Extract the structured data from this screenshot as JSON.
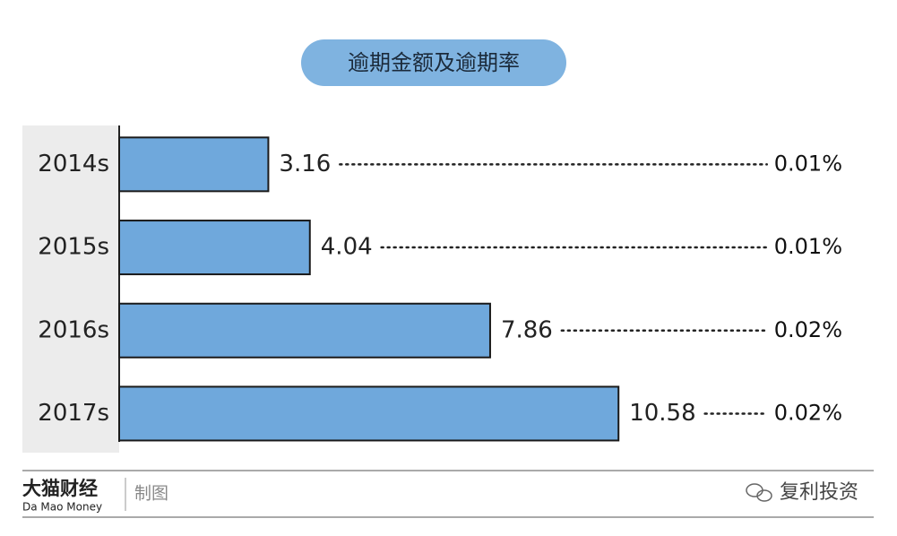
{
  "chart_data": {
    "type": "bar",
    "orientation": "horizontal",
    "title": "逾期金额及逾期率",
    "categories": [
      "2014s",
      "2015s",
      "2016s",
      "2017s"
    ],
    "values": [
      3.16,
      4.04,
      7.86,
      10.58
    ],
    "color": "#6fa8dc",
    "xlim": [
      0,
      12
    ],
    "rates": {
      "values": [
        0.01,
        0.01,
        0.02,
        0.02
      ],
      "value_labels": [
        "0.01%",
        "0.01%",
        "0.02%",
        "0.02%"
      ]
    }
  },
  "footer": {
    "brand": "大猫财经",
    "brand_en": "Da Mao Money",
    "note": "制图",
    "source": "复利投资"
  }
}
